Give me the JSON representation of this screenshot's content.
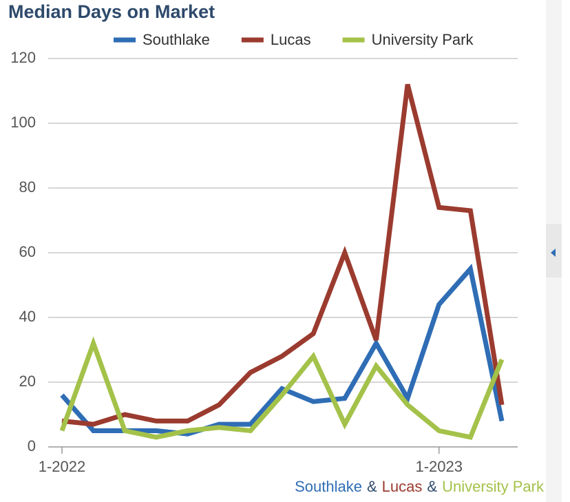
{
  "chart_data": {
    "type": "line",
    "title": "Median Days on Market",
    "categories": [
      "1-2022",
      null,
      null,
      null,
      null,
      null,
      null,
      null,
      null,
      null,
      null,
      null,
      "1-2023",
      null,
      null
    ],
    "series": [
      {
        "name": "Southlake",
        "color": "#2f6db5",
        "values": [
          16,
          5,
          5,
          5,
          4,
          7,
          7,
          18,
          14,
          15,
          32,
          15,
          44,
          55,
          8
        ]
      },
      {
        "name": "Lucas",
        "color": "#9b3b2f",
        "values": [
          8,
          7,
          10,
          8,
          8,
          13,
          23,
          28,
          35,
          60,
          33,
          112,
          74,
          73,
          13
        ]
      },
      {
        "name": "University Park",
        "color": "#a4c24a",
        "values": [
          5,
          32,
          5,
          3,
          5,
          6,
          5,
          16,
          28,
          7,
          25,
          13,
          5,
          3,
          27
        ]
      }
    ],
    "ylim": [
      0,
      120
    ],
    "yticks": [
      0,
      20,
      40,
      60,
      80,
      100,
      120
    ],
    "grid": true,
    "legend": "top",
    "footer": {
      "items": [
        {
          "text": "Southlake",
          "color": "#2f6db5"
        },
        {
          "text": "Lucas",
          "color": "#9b3b2f"
        },
        {
          "text": "University Park",
          "color": "#a4c24a"
        }
      ],
      "separator": "&"
    }
  }
}
